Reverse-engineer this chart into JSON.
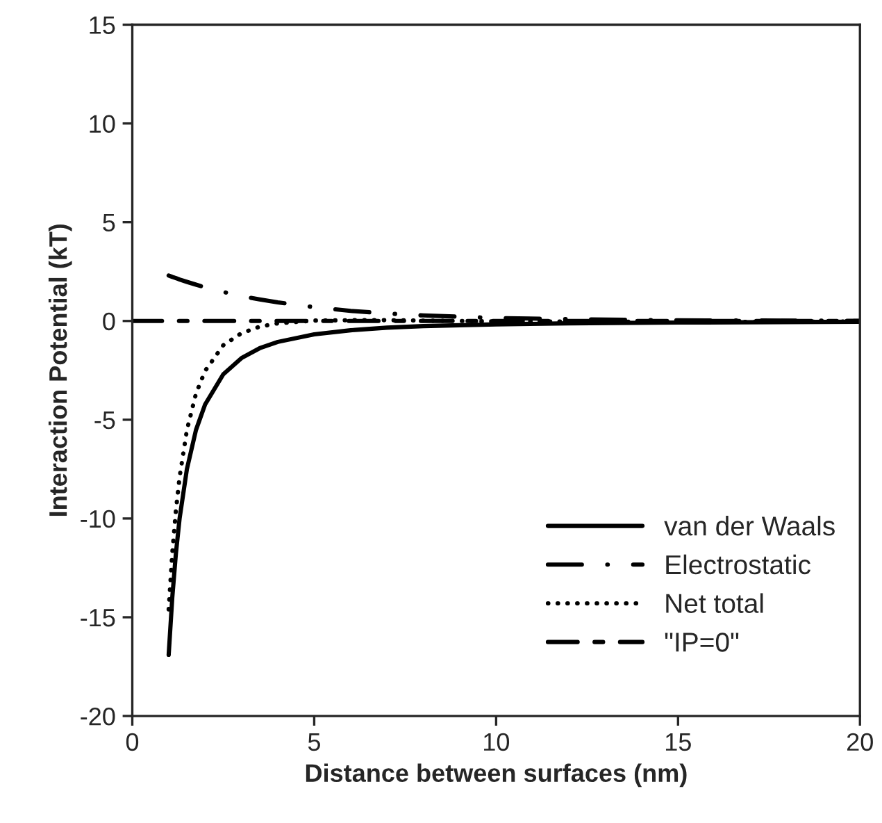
{
  "chart_data": {
    "type": "line",
    "xlabel": "Distance between surfaces (nm)",
    "ylabel": "Interaction Potential (kT)",
    "xlim": [
      0,
      20
    ],
    "xticks": [
      0,
      5,
      10,
      15,
      20
    ],
    "ylim": [
      -20,
      15
    ],
    "yticks": [
      -20,
      -15,
      -10,
      -5,
      0,
      5,
      10,
      15
    ],
    "grid": false,
    "legend": "bottom right",
    "marker": "none",
    "series": [
      {
        "name": "van der Waals",
        "color": "#000000",
        "line_style": "solid",
        "x": [
          1,
          1.1,
          1.2,
          1.3,
          1.5,
          1.75,
          2,
          2.5,
          3,
          3.5,
          4,
          5,
          6,
          7,
          8,
          10,
          12,
          15,
          20
        ],
        "values": [
          -16.9,
          -13.97,
          -11.74,
          -10.0,
          -7.51,
          -5.52,
          -4.23,
          -2.7,
          -1.88,
          -1.38,
          -1.06,
          -0.68,
          -0.47,
          -0.34,
          -0.26,
          -0.17,
          -0.12,
          -0.08,
          -0.04
        ]
      },
      {
        "name": "Electrostatic",
        "color": "#000000",
        "line_style": "dashdot",
        "x": [
          1,
          1.1,
          1.2,
          1.3,
          1.5,
          1.75,
          2,
          2.5,
          3,
          3.5,
          4,
          5,
          6,
          7,
          8,
          10,
          12,
          15,
          20
        ],
        "values": [
          2.3,
          2.23,
          2.17,
          2.1,
          1.98,
          1.84,
          1.7,
          1.47,
          1.26,
          1.09,
          0.94,
          0.7,
          0.51,
          0.38,
          0.28,
          0.15,
          0.09,
          0.03,
          0.01
        ]
      },
      {
        "name": "Net total",
        "color": "#000000",
        "line_style": "dotted",
        "x": [
          1,
          1.1,
          1.2,
          1.3,
          1.5,
          1.75,
          2,
          2.5,
          3,
          3.5,
          4,
          5,
          6,
          7,
          8,
          10,
          12,
          15,
          20
        ],
        "values": [
          -14.6,
          -11.74,
          -9.57,
          -7.9,
          -5.53,
          -3.68,
          -2.53,
          -1.23,
          -0.62,
          -0.29,
          -0.12,
          0.02,
          0.04,
          0.04,
          0.02,
          -0.02,
          -0.03,
          -0.05,
          -0.03
        ]
      },
      {
        "name": "\"IP=0\"",
        "color": "#000000",
        "line_style": "longdash",
        "x": [
          0,
          20
        ],
        "values": [
          0,
          0
        ]
      }
    ]
  }
}
